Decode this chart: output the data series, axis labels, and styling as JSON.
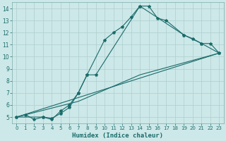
{
  "xlabel": "Humidex (Indice chaleur)",
  "bg_color": "#cde8e8",
  "line_color": "#1a6b6b",
  "grid_color": "#aecece",
  "xlim": [
    -0.5,
    23.5
  ],
  "ylim": [
    4.5,
    14.5
  ],
  "xticks": [
    0,
    1,
    2,
    3,
    4,
    5,
    6,
    7,
    8,
    9,
    10,
    11,
    12,
    13,
    14,
    15,
    16,
    17,
    18,
    19,
    20,
    21,
    22,
    23
  ],
  "yticks": [
    5,
    6,
    7,
    8,
    9,
    10,
    11,
    12,
    13,
    14
  ],
  "line1_x": [
    0,
    1,
    2,
    3,
    4,
    5,
    6,
    7,
    8,
    10,
    11,
    12,
    13,
    14,
    15,
    16,
    17,
    19,
    21,
    22,
    23
  ],
  "line1_y": [
    5.0,
    5.2,
    4.8,
    5.0,
    4.8,
    5.5,
    6.0,
    7.0,
    8.5,
    11.4,
    12.0,
    12.5,
    13.3,
    14.2,
    14.2,
    13.2,
    13.0,
    11.8,
    11.1,
    11.1,
    10.3
  ],
  "line2_x": [
    0,
    23
  ],
  "line2_y": [
    5.0,
    10.3
  ],
  "line3_x": [
    0,
    3,
    4,
    5,
    6,
    7,
    8,
    9,
    14,
    19,
    20,
    21,
    23
  ],
  "line3_y": [
    5.0,
    5.0,
    4.9,
    5.3,
    5.8,
    7.0,
    8.5,
    8.5,
    14.2,
    11.8,
    11.5,
    11.1,
    10.3
  ],
  "line4_x": [
    0,
    7,
    14,
    23
  ],
  "line4_y": [
    5.0,
    6.3,
    8.5,
    10.3
  ]
}
